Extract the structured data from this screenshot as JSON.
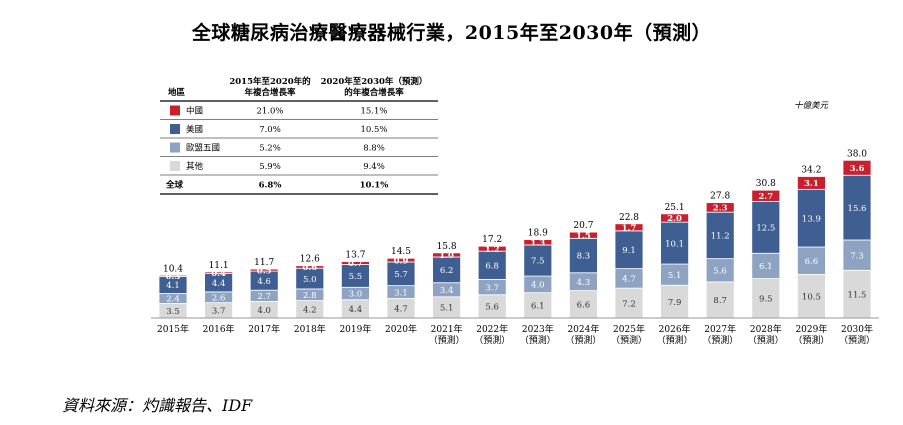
{
  "title": "全球糖尿病治療醫療器械行業，2015年至2030年（預測）",
  "unit_label": "十億美元",
  "source": "資料來源：灼識報告、IDF",
  "colors": {
    "china": "#c8202f",
    "usa": "#3f5f93",
    "europe": "#8ea3c2",
    "other": "#d9d9d9"
  },
  "table": {
    "headers": [
      "地區",
      "2015年至2020年的\n年複合增長率",
      "2020年至2030年（預測）\n的年複合增長率"
    ],
    "rows": [
      {
        "name": "中國",
        "c1": "21.0%",
        "c2": "15.1%",
        "color": "#c8202f"
      },
      {
        "name": "美國",
        "c1": "7.0%",
        "c2": "10.5%",
        "color": "#3f5f93"
      },
      {
        "name": "歐盟五國",
        "c1": "5.2%",
        "c2": "8.8%",
        "color": "#8ea3c2"
      },
      {
        "name": "其他",
        "c1": "5.9%",
        "c2": "9.4%",
        "color": "#d9d9d9"
      }
    ],
    "total": {
      "name": "全球",
      "c1": "6.8%",
      "c2": "10.1%"
    }
  },
  "chart_data": {
    "type": "bar",
    "stacked": true,
    "categories": [
      "2015年",
      "2016年",
      "2017年",
      "2018年",
      "2019年",
      "2020年",
      "2021年\n（預測）",
      "2022年\n（預測）",
      "2023年\n（預測）",
      "2024年\n（預測）",
      "2025年\n（預測）",
      "2026年\n（預測）",
      "2027年\n（預測）",
      "2028年\n（預測）",
      "2029年\n（預測）",
      "2030年\n（預測）"
    ],
    "series": [
      {
        "name": "其他",
        "values": [
          3.5,
          3.7,
          4.0,
          4.2,
          4.4,
          4.7,
          5.1,
          5.6,
          6.1,
          6.6,
          7.2,
          7.9,
          8.7,
          9.5,
          10.5,
          11.5
        ]
      },
      {
        "name": "歐盟五國",
        "values": [
          2.4,
          2.6,
          2.7,
          2.8,
          3.0,
          3.1,
          3.4,
          3.7,
          4.0,
          4.3,
          4.7,
          5.1,
          5.6,
          6.1,
          6.6,
          7.3
        ]
      },
      {
        "name": "美國",
        "values": [
          4.1,
          4.4,
          4.6,
          5.0,
          5.5,
          5.7,
          6.2,
          6.8,
          7.5,
          8.3,
          9.1,
          10.1,
          11.2,
          12.5,
          13.9,
          15.6
        ]
      },
      {
        "name": "中國",
        "values": [
          0.3,
          0.4,
          0.5,
          0.6,
          0.7,
          0.9,
          1.0,
          1.2,
          1.3,
          1.5,
          1.7,
          2.0,
          2.3,
          2.7,
          3.1,
          3.6
        ]
      }
    ],
    "totals": [
      10.4,
      11.1,
      11.7,
      12.6,
      13.7,
      14.5,
      15.8,
      17.2,
      18.9,
      20.7,
      22.8,
      25.1,
      27.8,
      30.8,
      34.2,
      38.0
    ],
    "ylim": [
      0,
      38.0
    ],
    "legend": "table"
  }
}
